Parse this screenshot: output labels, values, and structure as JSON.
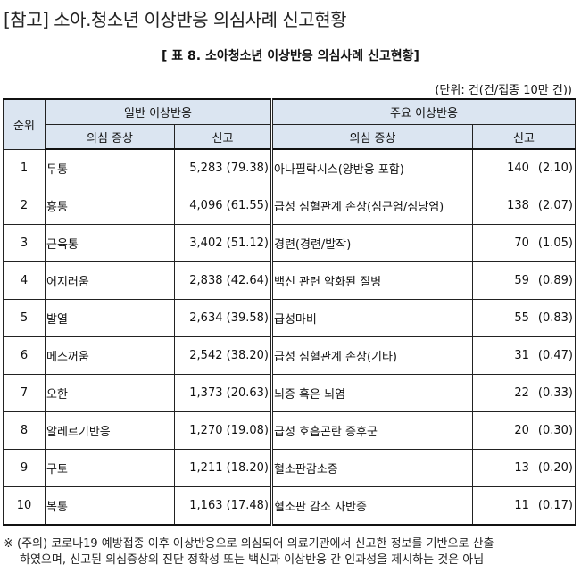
{
  "heading": "[참고] 소아.청소년 이상반응 의심사례 신고현황",
  "table_title": "[ 표 8. 소아청소년 이상반응 의심사례 신고현황]",
  "unit_note": "(단위: 건(건/접종 10만 건))",
  "columns": {
    "rank": "순위",
    "general_group": "일반 이상반응",
    "major_group": "주요 이상반응",
    "symptom": "의심 증상",
    "report": "신고"
  },
  "rows": [
    {
      "rank": "1",
      "general_symptom": "두통",
      "general_report": "5,283 (79.38)",
      "major_symptom": "아나필락시스(양반응 포함)",
      "major_count": "140",
      "major_rate": "(2.10)"
    },
    {
      "rank": "2",
      "general_symptom": "흉통",
      "general_report": "4,096 (61.55)",
      "major_symptom": "급성 심혈관계 손상(심근염/심낭염)",
      "major_count": "138",
      "major_rate": "(2.07)"
    },
    {
      "rank": "3",
      "general_symptom": "근육통",
      "general_report": "3,402 (51.12)",
      "major_symptom": "경련(경련/발작)",
      "major_count": "70",
      "major_rate": "(1.05)"
    },
    {
      "rank": "4",
      "general_symptom": "어지러움",
      "general_report": "2,838 (42.64)",
      "major_symptom": "백신 관련 악화된 질병",
      "major_count": "59",
      "major_rate": "(0.89)"
    },
    {
      "rank": "5",
      "general_symptom": "발열",
      "general_report": "2,634 (39.58)",
      "major_symptom": "급성마비",
      "major_count": "55",
      "major_rate": "(0.83)"
    },
    {
      "rank": "6",
      "general_symptom": "메스꺼움",
      "general_report": "2,542 (38.20)",
      "major_symptom": "급성 심혈관계 손상(기타)",
      "major_count": "31",
      "major_rate": "(0.47)"
    },
    {
      "rank": "7",
      "general_symptom": "오한",
      "general_report": "1,373 (20.63)",
      "major_symptom": "뇌증 혹은 뇌염",
      "major_count": "22",
      "major_rate": "(0.33)"
    },
    {
      "rank": "8",
      "general_symptom": "알레르기반응",
      "general_report": "1,270 (19.08)",
      "major_symptom": "급성 호흡곤란 증후군",
      "major_count": "20",
      "major_rate": "(0.30)"
    },
    {
      "rank": "9",
      "general_symptom": "구토",
      "general_report": "1,211 (18.20)",
      "major_symptom": "혈소판감소증",
      "major_count": "13",
      "major_rate": "(0.20)"
    },
    {
      "rank": "10",
      "general_symptom": "복통",
      "general_report": "1,163 (17.48)",
      "major_symptom": "혈소판 감소 자반증",
      "major_count": "11",
      "major_rate": "(0.17)"
    }
  ],
  "footnote": {
    "line1": "※ (주의) 코로나19 예방접종 이후 이상반응으로 의심되어 의료기관에서 신고한 정보를 기반으로 산출",
    "line2": "하였으며, 신고된 의심증상의 진단 정확성 또는 백신과 이상반응 간 인과성을 제시하는 것은 아님"
  },
  "colors": {
    "header_bg": "#dbe5f1",
    "border": "#222222"
  }
}
